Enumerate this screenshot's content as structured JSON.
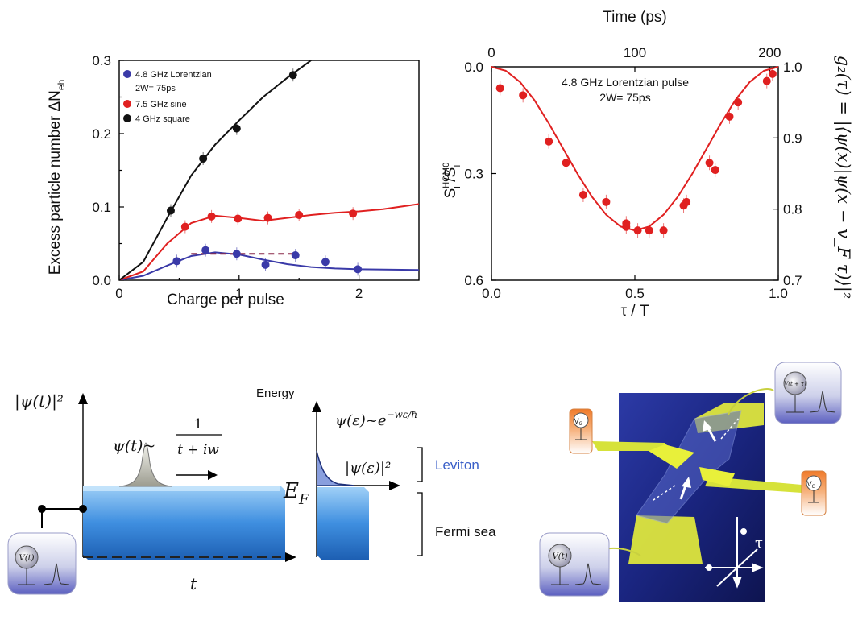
{
  "chart_data": [
    {
      "type": "scatter",
      "xlabel": "Charge per pulse",
      "ylabel": "Excess particle number ΔN",
      "ylabel_sub": "eh",
      "xlim": [
        0,
        2.5
      ],
      "ylim": [
        0,
        0.3
      ],
      "xticks": [
        "0",
        "1",
        "2"
      ],
      "yticks": [
        "0.0",
        "0.1",
        "0.2",
        "0.3"
      ],
      "legend": {
        "placement": "top-left",
        "entries": [
          "4.8 GHz Lorentzian",
          "2W= 75ps",
          "7.5 GHz sine",
          "4 GHz square"
        ]
      },
      "series": [
        {
          "name": "4.8 GHz Lorentzian",
          "color": "#3a3aa8",
          "points": [
            [
              0.48,
              0.026
            ],
            [
              0.72,
              0.041
            ],
            [
              0.98,
              0.036
            ],
            [
              1.22,
              0.021
            ],
            [
              1.47,
              0.034
            ],
            [
              1.72,
              0.025
            ],
            [
              1.99,
              0.015
            ]
          ],
          "fit": [
            [
              0,
              0
            ],
            [
              0.2,
              0.006
            ],
            [
              0.4,
              0.02
            ],
            [
              0.6,
              0.033
            ],
            [
              0.8,
              0.038
            ],
            [
              1.0,
              0.035
            ],
            [
              1.2,
              0.028
            ],
            [
              1.4,
              0.022
            ],
            [
              1.6,
              0.018
            ],
            [
              1.8,
              0.016
            ],
            [
              2.0,
              0.015
            ],
            [
              2.5,
              0.014
            ]
          ],
          "dashed": [
            [
              0.6,
              0.036
            ],
            [
              1.48,
              0.036
            ]
          ]
        },
        {
          "name": "7.5 GHz sine",
          "color": "#e02020",
          "points": [
            [
              0.55,
              0.073
            ],
            [
              0.77,
              0.087
            ],
            [
              0.99,
              0.084
            ],
            [
              1.24,
              0.085
            ],
            [
              1.5,
              0.089
            ],
            [
              1.95,
              0.091
            ]
          ],
          "fit": [
            [
              0,
              0
            ],
            [
              0.2,
              0.012
            ],
            [
              0.4,
              0.05
            ],
            [
              0.6,
              0.078
            ],
            [
              0.8,
              0.088
            ],
            [
              1.0,
              0.085
            ],
            [
              1.2,
              0.081
            ],
            [
              1.4,
              0.085
            ],
            [
              1.6,
              0.089
            ],
            [
              1.8,
              0.092
            ],
            [
              2.0,
              0.094
            ],
            [
              2.2,
              0.097
            ],
            [
              2.5,
              0.104
            ]
          ]
        },
        {
          "name": "4 GHz square",
          "color": "#111111",
          "points": [
            [
              0.43,
              0.095
            ],
            [
              0.7,
              0.166
            ],
            [
              0.98,
              0.207
            ],
            [
              1.45,
              0.28
            ]
          ],
          "fit": [
            [
              0,
              0
            ],
            [
              0.2,
              0.025
            ],
            [
              0.4,
              0.085
            ],
            [
              0.6,
              0.143
            ],
            [
              0.8,
              0.185
            ],
            [
              1.0,
              0.218
            ],
            [
              1.2,
              0.25
            ],
            [
              1.4,
              0.276
            ],
            [
              1.6,
              0.3
            ]
          ]
        }
      ]
    },
    {
      "type": "scatter",
      "title_top": "Time (ps)",
      "xlabel": "τ / T",
      "ylabel_main": "S",
      "ylabel_sup1": "HOM",
      "ylabel_sub1": "I",
      "ylabel_sup2": "0",
      "ylabel_sub2": "I",
      "ylabel_right": "g₂(τ) = |⟨ψ(x)|ψ(x − v_F τ)⟩|²",
      "xlim": [
        0,
        1
      ],
      "ylim": [
        0,
        0.6
      ],
      "ylim_right": [
        1.0,
        0.7
      ],
      "xticks": [
        "0.0",
        "0.5",
        "1.0"
      ],
      "yticks": [
        "0.0",
        "0.3",
        "0.6"
      ],
      "top_ticks": [
        "0",
        "100",
        "200"
      ],
      "right_ticks": [
        "1.0",
        "0.9",
        "0.8",
        "0.7"
      ],
      "annotation": [
        "4.8 GHz Lorentzian pulse",
        "2W= 75ps"
      ],
      "series": [
        {
          "name": "4.8 GHz Lorentzian pulse",
          "color": "#e02020",
          "points": [
            [
              0.03,
              0.06
            ],
            [
              0.11,
              0.08
            ],
            [
              0.2,
              0.21
            ],
            [
              0.26,
              0.27
            ],
            [
              0.32,
              0.36
            ],
            [
              0.4,
              0.38
            ],
            [
              0.47,
              0.44
            ],
            [
              0.47,
              0.45
            ],
            [
              0.51,
              0.46
            ],
            [
              0.55,
              0.46
            ],
            [
              0.6,
              0.46
            ],
            [
              0.67,
              0.39
            ],
            [
              0.68,
              0.38
            ],
            [
              0.76,
              0.27
            ],
            [
              0.78,
              0.29
            ],
            [
              0.83,
              0.14
            ],
            [
              0.86,
              0.1
            ],
            [
              0.96,
              0.04
            ],
            [
              0.98,
              0.02
            ]
          ],
          "fit": [
            [
              0,
              0
            ],
            [
              0.05,
              0.011
            ],
            [
              0.1,
              0.043
            ],
            [
              0.15,
              0.094
            ],
            [
              0.2,
              0.159
            ],
            [
              0.25,
              0.23
            ],
            [
              0.3,
              0.301
            ],
            [
              0.35,
              0.365
            ],
            [
              0.4,
              0.416
            ],
            [
              0.45,
              0.449
            ],
            [
              0.5,
              0.46
            ],
            [
              0.55,
              0.449
            ],
            [
              0.6,
              0.416
            ],
            [
              0.65,
              0.365
            ],
            [
              0.7,
              0.301
            ],
            [
              0.75,
              0.23
            ],
            [
              0.8,
              0.159
            ],
            [
              0.85,
              0.094
            ],
            [
              0.9,
              0.043
            ],
            [
              0.95,
              0.011
            ],
            [
              1.0,
              0
            ]
          ]
        }
      ]
    }
  ],
  "schematic": {
    "psi_t_label": "|ψ(t)|²",
    "psi_t_formula": "ψ(t)~",
    "frac_num": "1",
    "frac_den": "t + iw",
    "energy_label": "Energy",
    "psi_e_formula": "ψ(ε)~e",
    "psi_e_exp": "−wε/ħ",
    "psi_e_sq": "|ψ(ε)|²",
    "leviton": "Leviton",
    "fermi_sea": "Fermi sea",
    "ef": "E",
    "ef_sub": "F",
    "t_axis": "t",
    "source_label": "V(t)"
  },
  "device": {
    "vg_left": "V",
    "vg_left_sub": "G",
    "vg_right": "V",
    "vg_right_sub": "G",
    "vt_top": "V(t + τ)",
    "vt_bottom": "V(t)",
    "tau_label": "τ"
  },
  "colors": {
    "red": "#e02020",
    "blue": "#3a3aa8",
    "black": "#111111",
    "sea_blue": "#3a8ee0",
    "leviton_blue": "#3a5fc8",
    "device_bg": "#1e2a8a",
    "gate_yellow": "#e8f03a"
  }
}
